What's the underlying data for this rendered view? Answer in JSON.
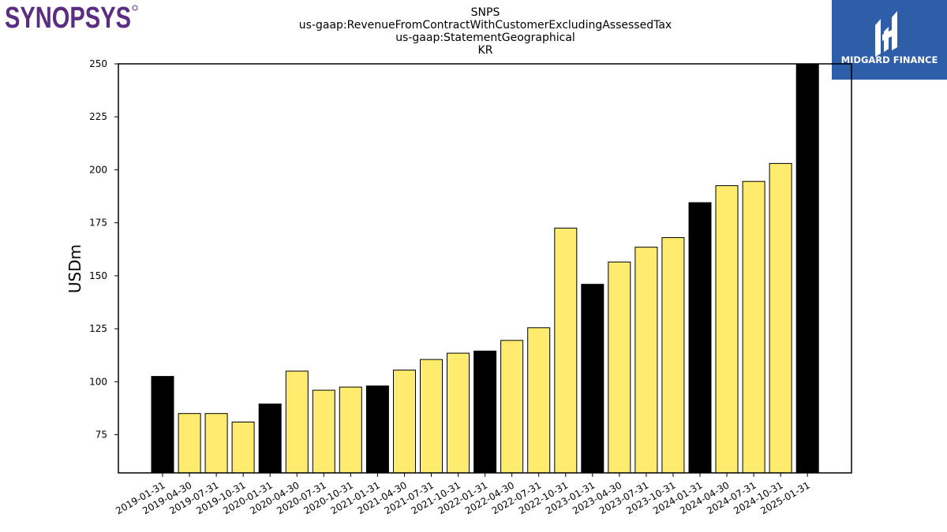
{
  "logos": {
    "left_text": "SYNOPSYS",
    "right_text": "MIDGARD FINANCE"
  },
  "colors": {
    "annual": "#000000",
    "quarterly": "#ffeb6e",
    "brand_left": "#5a2d82",
    "brand_right": "#2f5ea8"
  },
  "chart_data": {
    "type": "bar",
    "title_lines": [
      "SNPS",
      "us-gaap:RevenueFromContractWithCustomerExcludingAssessedTax",
      "us-gaap:StatementGeographical",
      "KR"
    ],
    "xlabel": "",
    "ylabel": "USDm",
    "ylim": [
      57,
      250
    ],
    "yticks": [
      75,
      100,
      125,
      150,
      175,
      200,
      225,
      250
    ],
    "grid": false,
    "categories": [
      "2019-01-31",
      "2019-04-30",
      "2019-07-31",
      "2019-10-31",
      "2020-01-31",
      "2020-04-30",
      "2020-07-31",
      "2020-10-31",
      "2021-01-31",
      "2021-04-30",
      "2021-07-31",
      "2021-10-31",
      "2022-01-31",
      "2022-04-30",
      "2022-07-31",
      "2022-10-31",
      "2023-01-31",
      "2023-04-30",
      "2023-07-31",
      "2023-10-31",
      "2024-01-31",
      "2024-04-30",
      "2024-07-31",
      "2024-10-31",
      "2025-01-31"
    ],
    "values": [
      102.5,
      85,
      85,
      81,
      89.5,
      105,
      96,
      97.5,
      98,
      105.5,
      110.5,
      113.5,
      114.5,
      119.5,
      125.5,
      172.5,
      146,
      156.5,
      163.5,
      168,
      184.5,
      192.5,
      194.5,
      203,
      252
    ],
    "annual": [
      true,
      false,
      false,
      false,
      true,
      false,
      false,
      false,
      true,
      false,
      false,
      false,
      true,
      false,
      false,
      false,
      true,
      false,
      false,
      false,
      true,
      false,
      false,
      false,
      true
    ]
  }
}
